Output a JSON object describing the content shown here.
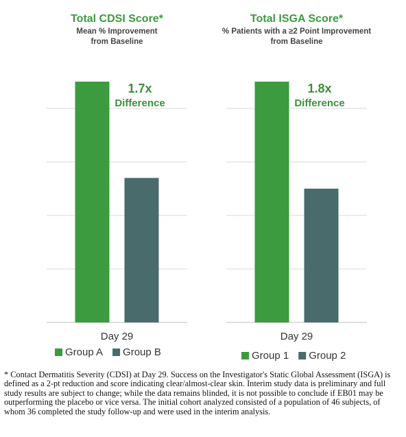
{
  "chart_data": [
    {
      "type": "bar",
      "title": "Total CDSI Score*",
      "subtitle": [
        "Mean % Improvement",
        "from Baseline"
      ],
      "categories": [
        "Day 29"
      ],
      "series": [
        {
          "name": "Group A",
          "color": "#3c9a3f",
          "values": [
            4.5
          ]
        },
        {
          "name": "Group B",
          "color": "#4a6b6b",
          "values": [
            2.7
          ]
        }
      ],
      "ylim": [
        0,
        5
      ],
      "yticks": [
        1,
        2,
        3,
        4
      ],
      "grid": true,
      "annotations": [
        "1.7x",
        "Difference"
      ]
    },
    {
      "type": "bar",
      "title": "Total ISGA Score*",
      "subtitle": [
        "% Patients with a ≥2 Point Improvement",
        "from Baseline"
      ],
      "categories": [
        "Day 29"
      ],
      "series": [
        {
          "name": "Group 1",
          "color": "#3c9a3f",
          "values": [
            4.5
          ]
        },
        {
          "name": "Group 2",
          "color": "#4a6b6b",
          "values": [
            2.5
          ]
        }
      ],
      "ylim": [
        0,
        5
      ],
      "yticks": [
        1,
        2,
        3,
        4
      ],
      "grid": true,
      "annotations": [
        "1.8x",
        "Difference"
      ]
    }
  ],
  "footnote": "* Contact Dermatitis Severity (CDSI) at Day 29. Success on the Investigator's Static Global Assessment (ISGA) is defined as a 2-pt reduction and score indicating clear/almost-clear skin. Interim study data is preliminary and full study results are subject to change; while the data remains blinded, it is not possible to conclude if EB01 may be outperforming the placebo or vice versa. The initial cohort analyzed consisted of a population of 46 subjects, of whom 36 completed the study follow-up and were used in the interim analysis."
}
